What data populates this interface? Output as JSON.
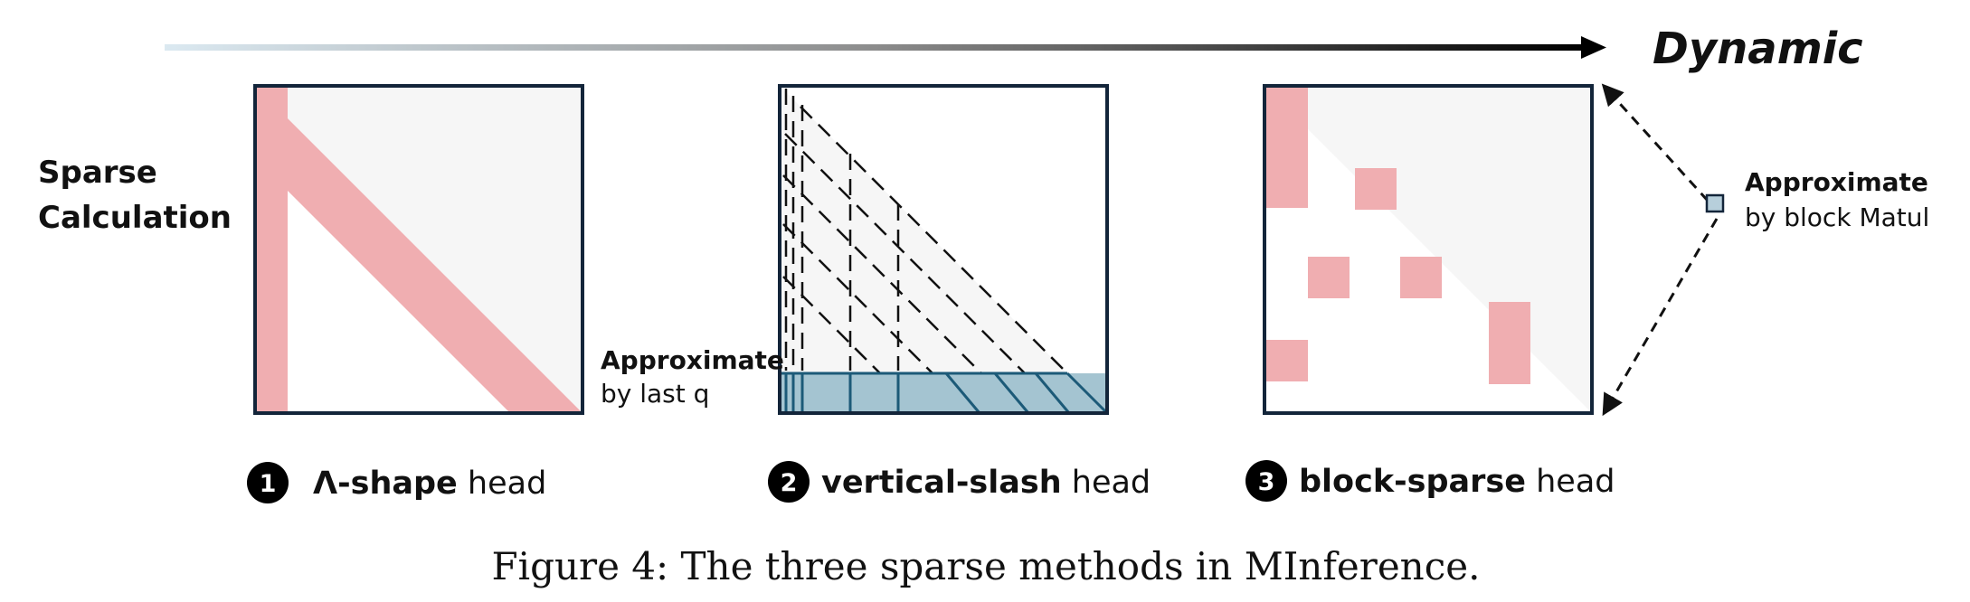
{
  "axis": {
    "label": "Dynamic"
  },
  "sparse_label": {
    "line1": "Sparse",
    "line2": "Calculation"
  },
  "panel2_note": {
    "title": "Approximate",
    "subtitle": "by last q"
  },
  "panel3_note": {
    "title": "Approximate",
    "subtitle": "by block Matul"
  },
  "heads": [
    {
      "number": "1",
      "name": "Λ-shape",
      "suffix": " head"
    },
    {
      "number": "2",
      "name": "vertical-slash",
      "suffix": " head"
    },
    {
      "number": "3",
      "name": "block-sparse",
      "suffix": " head"
    }
  ],
  "caption": "Figure 4: The three sparse methods in MInference.",
  "colors": {
    "pink": "#f0aeb1",
    "teal_fill": "#a4c4d1",
    "teal_line": "#1c5a78",
    "frame": "#13253a",
    "light_fill": "#f6f6f6",
    "marker": "#b7cfdb"
  }
}
